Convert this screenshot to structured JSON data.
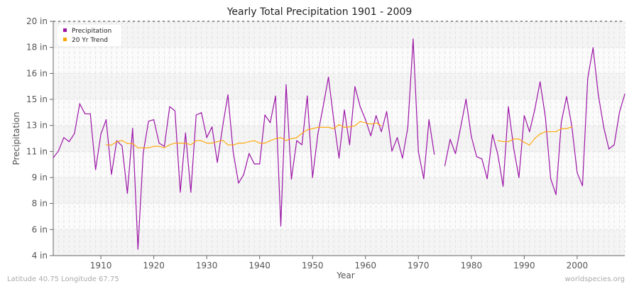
{
  "chart_data": {
    "type": "line",
    "title": "Yearly Total Precipitation 1901 - 2009",
    "xlabel": "Year",
    "ylabel": "Precipitation",
    "xlim": [
      1901,
      2009
    ],
    "ylim": [
      4,
      20
    ],
    "x_ticks": [
      1910,
      1920,
      1930,
      1940,
      1950,
      1960,
      1970,
      1980,
      1990,
      2000
    ],
    "y_ticks": [
      {
        "value": 4,
        "label": "4 in"
      },
      {
        "value": 5.78,
        "label": "6 in"
      },
      {
        "value": 7.56,
        "label": "8 in"
      },
      {
        "value": 9.33,
        "label": "9 in"
      },
      {
        "value": 11.11,
        "label": "11 in"
      },
      {
        "value": 12.89,
        "label": "13 in"
      },
      {
        "value": 14.67,
        "label": "15 in"
      },
      {
        "value": 16.44,
        "label": "16 in"
      },
      {
        "value": 18.22,
        "label": "18 in"
      },
      {
        "value": 20,
        "label": "20 in"
      }
    ],
    "grid": true,
    "legend_position": "top-left",
    "start_year": 1901,
    "series": [
      {
        "name": "Precipitation",
        "color": "#9b14a6",
        "values": [
          10.68,
          11.16,
          12.06,
          11.78,
          12.33,
          14.37,
          13.68,
          13.68,
          9.87,
          12.3,
          13.28,
          9.54,
          11.85,
          11.49,
          8.25,
          12.69,
          4.44,
          11.0,
          13.18,
          13.28,
          11.68,
          11.46,
          14.17,
          13.89,
          8.33,
          12.37,
          8.33,
          13.6,
          13.76,
          12.06,
          12.79,
          10.36,
          12.79,
          14.98,
          11.09,
          8.95,
          9.54,
          10.97,
          10.26,
          10.26,
          13.6,
          13.08,
          14.9,
          6.03,
          15.67,
          9.22,
          11.85,
          11.57,
          14.9,
          9.33,
          12.3,
          14.17,
          16.19,
          13.28,
          10.65,
          13.95,
          11.57,
          15.54,
          14.17,
          13.28,
          12.18,
          13.56,
          12.46,
          13.84,
          11.13,
          12.06,
          10.65,
          12.76,
          18.79,
          11.09,
          9.25,
          13.28,
          10.92,
          null,
          10.14,
          11.94,
          10.96,
          12.79,
          14.68,
          12.14,
          10.76,
          10.6,
          9.25,
          12.27,
          10.92,
          8.73,
          14.17,
          11.33,
          9.33,
          13.56,
          12.46,
          14.0,
          15.87,
          13.43,
          9.25,
          8.17,
          13.11,
          14.86,
          12.79,
          9.66,
          8.77,
          16.11,
          18.19,
          14.98,
          12.79,
          11.28,
          11.57,
          13.79,
          15.03
        ]
      },
      {
        "name": "20 Yr Trend",
        "color": "#ffa500",
        "values": [
          null,
          null,
          null,
          null,
          null,
          null,
          null,
          null,
          null,
          null,
          11.57,
          11.55,
          11.78,
          11.86,
          11.65,
          11.65,
          11.36,
          11.36,
          11.36,
          11.46,
          11.46,
          11.36,
          11.57,
          11.68,
          11.68,
          11.68,
          11.57,
          11.85,
          11.85,
          11.68,
          11.68,
          11.78,
          11.88,
          11.57,
          11.55,
          11.68,
          11.68,
          11.78,
          11.85,
          11.68,
          11.68,
          11.85,
          11.98,
          12.06,
          11.86,
          11.98,
          12.06,
          12.35,
          12.59,
          12.67,
          12.76,
          12.76,
          12.76,
          12.67,
          12.95,
          12.76,
          12.79,
          12.87,
          13.16,
          13.06,
          12.98,
          13.06,
          12.87,
          null,
          null,
          null,
          null,
          null,
          null,
          null,
          null,
          null,
          null,
          null,
          null,
          null,
          null,
          null,
          null,
          null,
          null,
          null,
          null,
          null,
          11.86,
          11.78,
          11.78,
          11.96,
          11.96,
          11.73,
          11.55,
          12.01,
          12.3,
          12.46,
          12.46,
          12.46,
          12.67,
          12.67,
          12.79,
          null,
          null,
          null,
          null,
          null,
          null,
          null,
          null,
          null,
          null
        ]
      }
    ]
  },
  "footer": {
    "location": "Latitude 40.75 Longitude 67.75",
    "source": "worldspecies.org"
  }
}
